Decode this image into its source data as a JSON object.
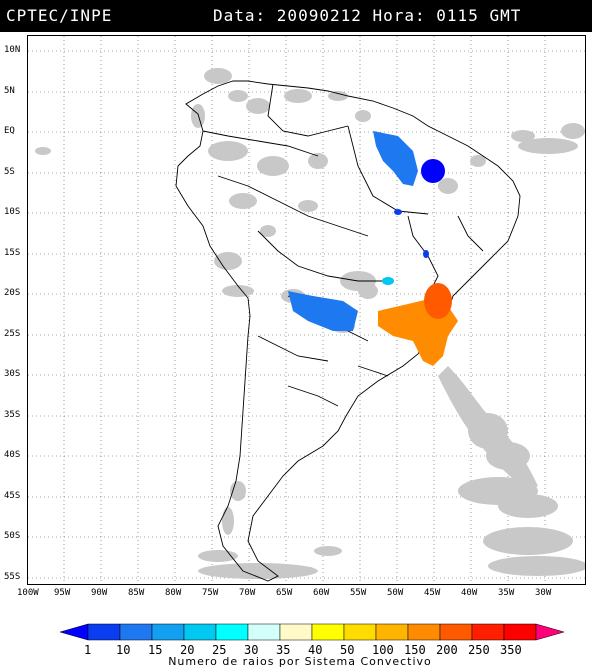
{
  "header": {
    "org": "CPTEC/INPE",
    "datetime": "Data: 20090212 Hora: 0115 GMT"
  },
  "map": {
    "lat_labels": [
      "10N",
      "5N",
      "EQ",
      "5S",
      "10S",
      "15S",
      "20S",
      "25S",
      "30S",
      "35S",
      "40S",
      "45S",
      "50S",
      "55S"
    ],
    "lon_labels": [
      "100W",
      "95W",
      "90W",
      "85W",
      "80W",
      "75W",
      "70W",
      "65W",
      "60W",
      "55W",
      "50W",
      "45W",
      "40W",
      "35W",
      "30W"
    ],
    "colors": {
      "cloud": "#c8c8c8",
      "border": "#000000"
    }
  },
  "legend": {
    "labels": [
      "1",
      "10",
      "15",
      "20",
      "25",
      "30",
      "35",
      "40",
      "50",
      "100",
      "150",
      "200",
      "250",
      "350"
    ],
    "colors": [
      "#0000ff",
      "#0a3cf0",
      "#1e78f0",
      "#14a0f0",
      "#00c8f0",
      "#00ffff",
      "#d2fffa",
      "#fffac8",
      "#ffff00",
      "#ffdc00",
      "#ffb400",
      "#ff8c00",
      "#ff5a00",
      "#ff1e00",
      "#ff0000",
      "#ff0078"
    ],
    "title": "Numero de raios por Sistema Convectivo"
  }
}
